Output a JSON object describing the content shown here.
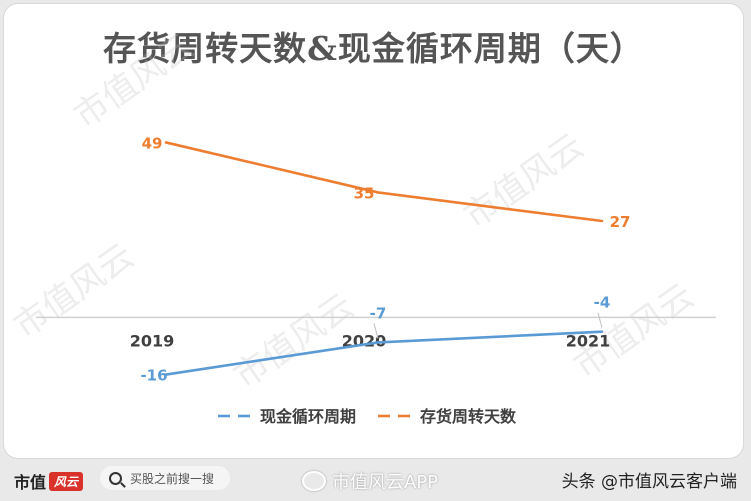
{
  "chart_data": {
    "type": "line",
    "title": "存货周转天数&现金循环周期（天）",
    "categories": [
      "2019",
      "2020",
      "2021"
    ],
    "series": [
      {
        "name": "存货周转天数",
        "values": [
          49,
          35,
          27
        ],
        "color": "#ED7D31"
      },
      {
        "name": "现金循环周期",
        "values": [
          -16,
          -7,
          -4
        ],
        "color": "#5B9BD5"
      }
    ],
    "data_labels": {
      "存货周转天数": [
        "49",
        "35",
        "27"
      ],
      "现金循环周期": [
        "-16",
        "-7",
        "-4"
      ]
    },
    "ylim": [
      -22,
      62
    ],
    "grid": false,
    "legend": {
      "position": "bottom",
      "entries": [
        "现金循环周期",
        "存货周转天数"
      ]
    }
  },
  "watermark": "市值风云",
  "footer": {
    "brand": "市值",
    "brand_logo": "风云",
    "search_placeholder": "买股之前搜一搜",
    "weibo_mark": "市值风云APP",
    "source": "头条 @市值风云客户端"
  }
}
